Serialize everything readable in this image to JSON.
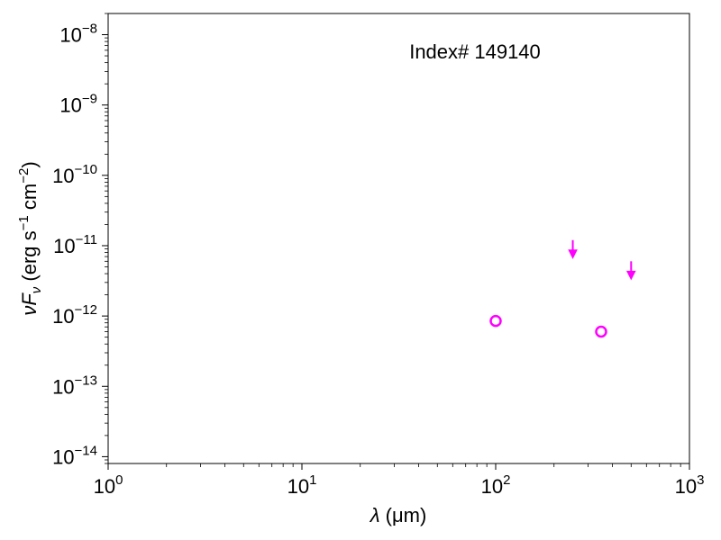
{
  "chart_data": {
    "type": "scatter",
    "title": "",
    "annotation": "Index# 149140",
    "xlabel": {
      "symbol": "λ",
      "unit": " (μm)"
    },
    "ylabel": {
      "symbol": "νF",
      "sub": "ν",
      "unit": " (erg s",
      "unit_exp1": "−1",
      "unit_mid": " cm",
      "unit_exp2": "−2",
      "unit_end": ")"
    },
    "x_scale": "log",
    "y_scale": "log",
    "xlim": [
      1,
      1000
    ],
    "ylim": [
      8e-15,
      2e-08
    ],
    "x_ticks": [
      {
        "value": 1,
        "base": "10",
        "exp": "0"
      },
      {
        "value": 10,
        "base": "10",
        "exp": "1"
      },
      {
        "value": 100,
        "base": "10",
        "exp": "2"
      },
      {
        "value": 1000,
        "base": "10",
        "exp": "3"
      }
    ],
    "y_ticks": [
      {
        "value": 1e-14,
        "base": "10",
        "exp": "−14"
      },
      {
        "value": 1e-13,
        "base": "10",
        "exp": "−13"
      },
      {
        "value": 1e-12,
        "base": "10",
        "exp": "−12"
      },
      {
        "value": 1e-11,
        "base": "10",
        "exp": "−11"
      },
      {
        "value": 1e-10,
        "base": "10",
        "exp": "−10"
      },
      {
        "value": 1e-09,
        "base": "10",
        "exp": "−9"
      },
      {
        "value": 1e-08,
        "base": "10",
        "exp": "−8"
      }
    ],
    "color": "#ff00ff",
    "detections": [
      {
        "x": 100,
        "y": 8.5e-13
      },
      {
        "x": 350,
        "y": 6e-13
      }
    ],
    "upper_limits": [
      {
        "x": 250,
        "y": 1.2e-11
      },
      {
        "x": 500,
        "y": 6e-12
      }
    ],
    "grid": false,
    "legend": "none"
  }
}
